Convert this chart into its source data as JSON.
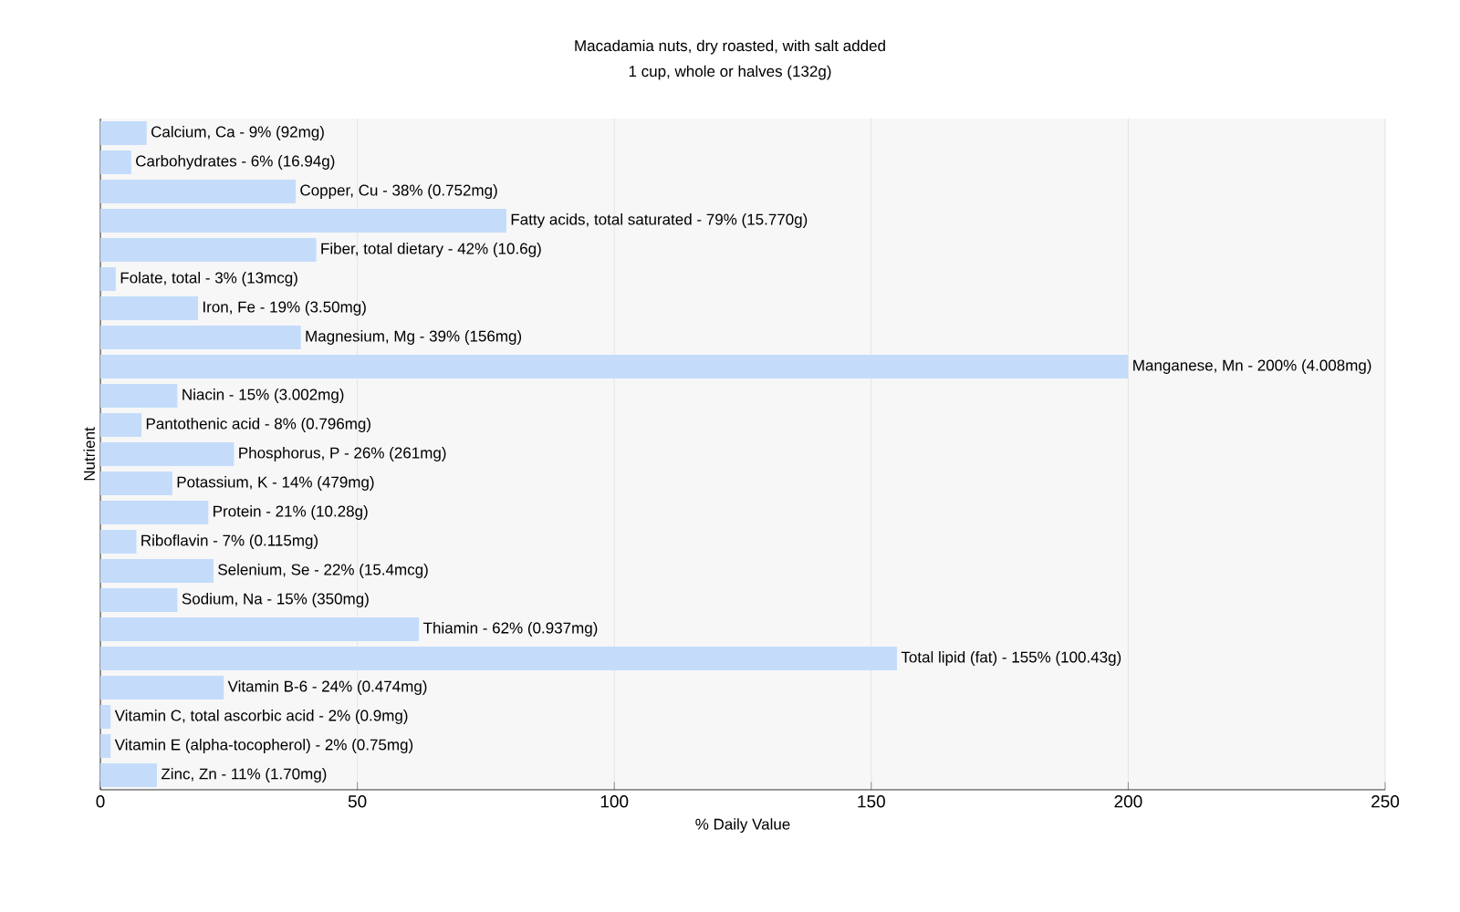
{
  "chart_data": {
    "type": "bar",
    "orientation": "horizontal",
    "title": "Macadamia nuts, dry roasted, with salt added",
    "subtitle": "1 cup, whole or halves (132g)",
    "xlabel": "% Daily Value",
    "ylabel": "Nutrient",
    "categories": [
      "Calcium, Ca - 9% (92mg)",
      "Carbohydrates - 6% (16.94g)",
      "Copper, Cu - 38% (0.752mg)",
      "Fatty acids, total saturated - 79% (15.770g)",
      "Fiber, total dietary - 42% (10.6g)",
      "Folate, total - 3% (13mcg)",
      "Iron, Fe - 19% (3.50mg)",
      "Magnesium, Mg - 39% (156mg)",
      "Manganese, Mn - 200% (4.008mg)",
      "Niacin - 15% (3.002mg)",
      "Pantothenic acid - 8% (0.796mg)",
      "Phosphorus, P - 26% (261mg)",
      "Potassium, K - 14% (479mg)",
      "Protein - 21% (10.28g)",
      "Riboflavin - 7% (0.115mg)",
      "Selenium, Se - 22% (15.4mcg)",
      "Sodium, Na - 15% (350mg)",
      "Thiamin - 62% (0.937mg)",
      "Total lipid (fat) - 155% (100.43g)",
      "Vitamin B-6 - 24% (0.474mg)",
      "Vitamin C, total ascorbic acid - 2% (0.9mg)",
      "Vitamin E (alpha-tocopherol) - 2% (0.75mg)",
      "Zinc, Zn - 11% (1.70mg)"
    ],
    "values": [
      9,
      6,
      38,
      79,
      42,
      3,
      19,
      39,
      200,
      15,
      8,
      26,
      14,
      21,
      7,
      22,
      15,
      62,
      155,
      24,
      2,
      2,
      11
    ],
    "color": "#c4dcfa",
    "xlim": [
      0,
      250
    ],
    "xticks": [
      0,
      50,
      100,
      150,
      200,
      250
    ],
    "grid": "x"
  }
}
